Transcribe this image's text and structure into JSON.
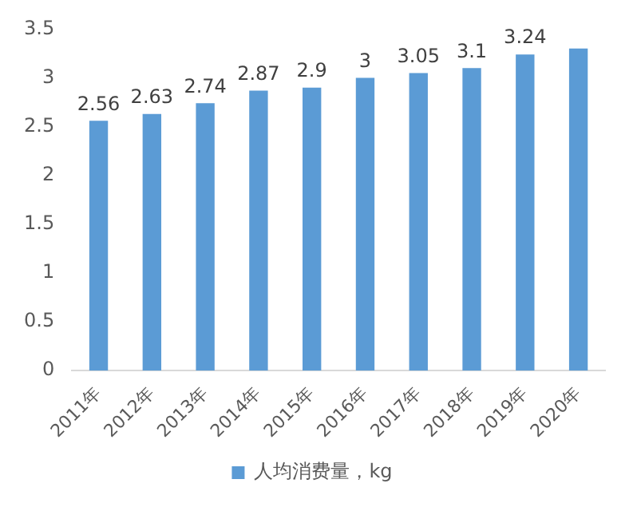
{
  "chart_data": {
    "type": "bar",
    "categories": [
      "2011年",
      "2012年",
      "2013年",
      "2014年",
      "2015年",
      "2016年",
      "2017年",
      "2018年",
      "2019年",
      "2020年"
    ],
    "series": [
      {
        "name": "人均消费量，kg",
        "color": "#5b9bd5",
        "values": [
          2.56,
          2.63,
          2.74,
          2.87,
          2.9,
          3,
          3.05,
          3.1,
          3.24,
          3.3
        ],
        "value_labels": [
          "2.56",
          "2.63",
          "2.74",
          "2.87",
          "2.9",
          "3",
          "3.05",
          "3.1",
          "3.24",
          null
        ]
      }
    ],
    "ylim": [
      0,
      3.5
    ],
    "yticks": [
      0,
      0.5,
      1,
      1.5,
      2,
      2.5,
      3,
      3.5
    ],
    "grid": false,
    "legend": "bottom"
  }
}
